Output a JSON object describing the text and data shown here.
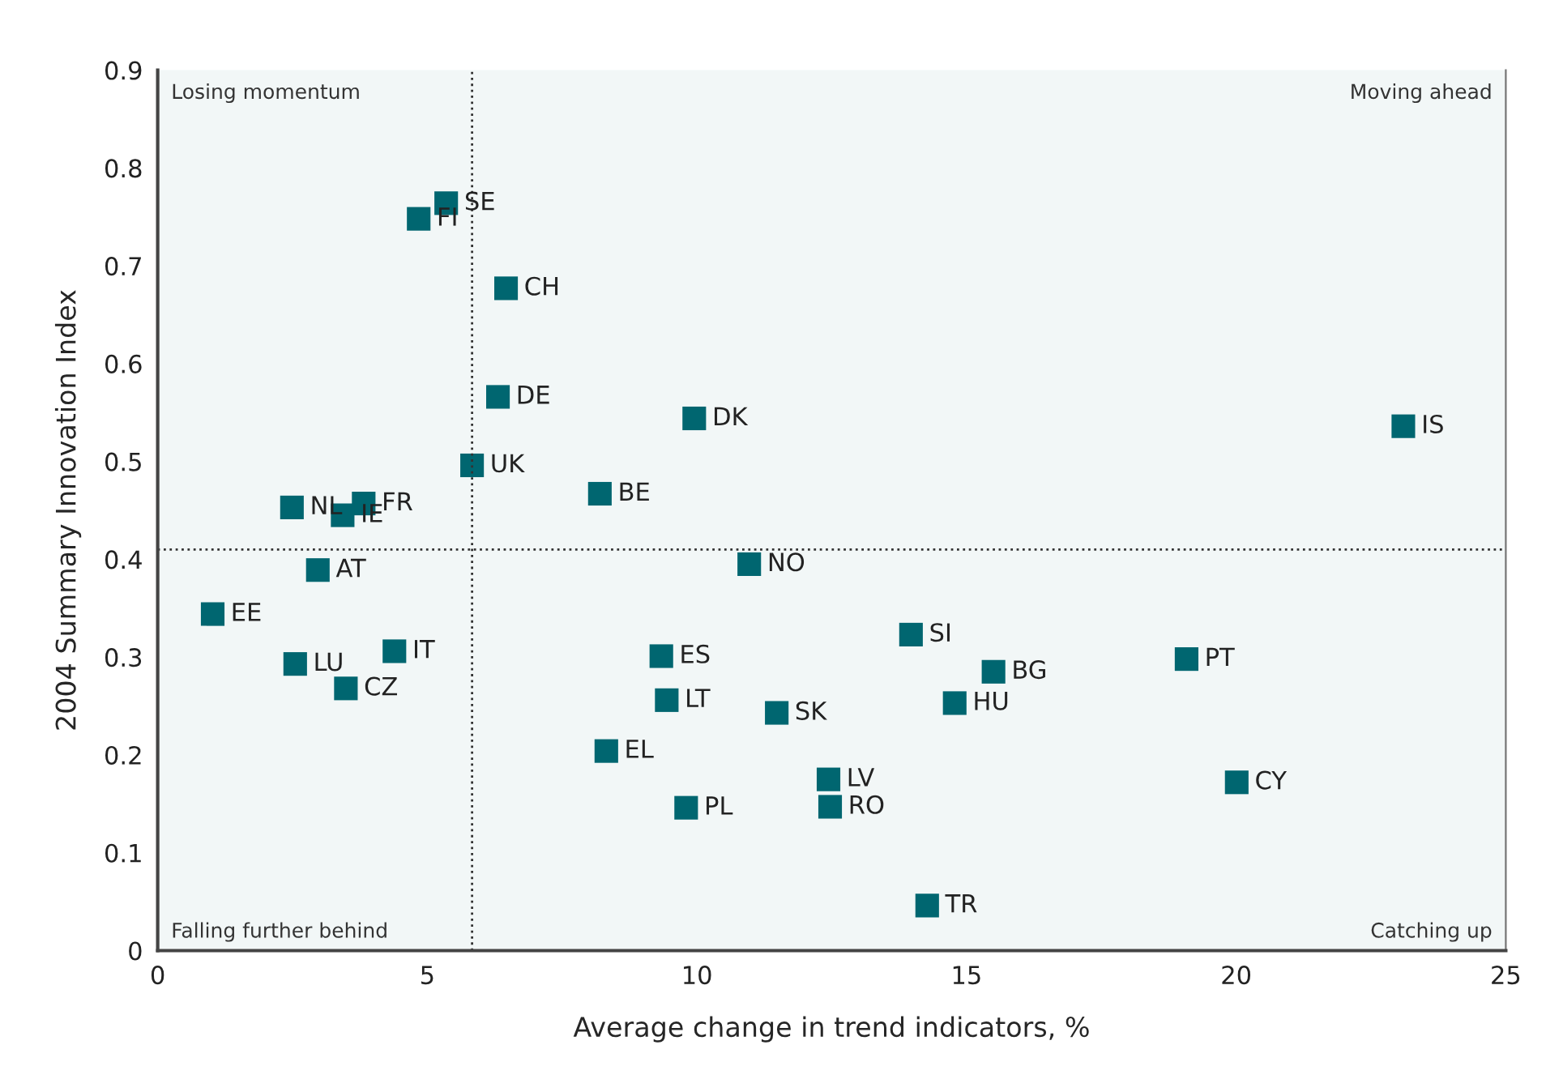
{
  "chart_data": {
    "type": "scatter",
    "xlabel": "Average change in trend indicators, %",
    "ylabel": "2004 Summary Innovation Index",
    "xlim": [
      0,
      25
    ],
    "ylim": [
      0,
      0.9
    ],
    "xticks": [
      0,
      5,
      10,
      15,
      20,
      25
    ],
    "yticks": [
      0,
      0.1,
      0.2,
      0.3,
      0.4,
      0.5,
      0.6,
      0.7,
      0.8,
      0.9
    ],
    "grid": false,
    "marker": "square",
    "legend": false,
    "ref_lines": [
      {
        "axis": "x",
        "value": 5.83,
        "line_style": "dotted",
        "color": "#333333"
      },
      {
        "axis": "y",
        "value": 0.41,
        "line_style": "dotted",
        "color": "#333333"
      }
    ],
    "annotations": [
      "Losing momentum",
      "Moving ahead",
      "Falling further behind",
      "Catching up"
    ],
    "series": [
      {
        "name": "SE",
        "color": "#006670",
        "x": [
          5.35
        ],
        "values": [
          0.764
        ]
      },
      {
        "name": "FI",
        "color": "#006670",
        "x": [
          4.84
        ],
        "values": [
          0.748
        ]
      },
      {
        "name": "CH",
        "color": "#006670",
        "x": [
          6.46
        ],
        "values": [
          0.677
        ]
      },
      {
        "name": "DE",
        "color": "#006670",
        "x": [
          6.31
        ],
        "values": [
          0.566
        ]
      },
      {
        "name": "DK",
        "color": "#006670",
        "x": [
          9.95
        ],
        "values": [
          0.544
        ]
      },
      {
        "name": "UK",
        "color": "#006670",
        "x": [
          5.83
        ],
        "values": [
          0.496
        ]
      },
      {
        "name": "BE",
        "color": "#006670",
        "x": [
          8.2
        ],
        "values": [
          0.467
        ]
      },
      {
        "name": "NL",
        "color": "#006670",
        "x": [
          2.49
        ],
        "values": [
          0.453
        ]
      },
      {
        "name": "FR",
        "color": "#006670",
        "x": [
          3.82
        ],
        "values": [
          0.457
        ]
      },
      {
        "name": "IE",
        "color": "#006670",
        "x": [
          3.43
        ],
        "values": [
          0.445
        ]
      },
      {
        "name": "IS",
        "color": "#006670",
        "x": [
          23.1
        ],
        "values": [
          0.536
        ]
      },
      {
        "name": "NO",
        "color": "#006670",
        "x": [
          10.97
        ],
        "values": [
          0.395
        ]
      },
      {
        "name": "AT",
        "color": "#006670",
        "x": [
          2.97
        ],
        "values": [
          0.389
        ]
      },
      {
        "name": "EE",
        "color": "#006670",
        "x": [
          1.02
        ],
        "values": [
          0.344
        ]
      },
      {
        "name": "LU",
        "color": "#006670",
        "x": [
          2.55
        ],
        "values": [
          0.293
        ]
      },
      {
        "name": "IT",
        "color": "#006670",
        "x": [
          4.39
        ],
        "values": [
          0.306
        ]
      },
      {
        "name": "CZ",
        "color": "#006670",
        "x": [
          3.49
        ],
        "values": [
          0.268
        ]
      },
      {
        "name": "ES",
        "color": "#006670",
        "x": [
          9.34
        ],
        "values": [
          0.301
        ]
      },
      {
        "name": "LT",
        "color": "#006670",
        "x": [
          9.44
        ],
        "values": [
          0.256
        ]
      },
      {
        "name": "SK",
        "color": "#006670",
        "x": [
          11.48
        ],
        "values": [
          0.243
        ]
      },
      {
        "name": "EL",
        "color": "#006670",
        "x": [
          8.32
        ],
        "values": [
          0.204
        ]
      },
      {
        "name": "PL",
        "color": "#006670",
        "x": [
          9.8
        ],
        "values": [
          0.146
        ]
      },
      {
        "name": "LV",
        "color": "#006670",
        "x": [
          12.44
        ],
        "values": [
          0.175
        ]
      },
      {
        "name": "RO",
        "color": "#006670",
        "x": [
          12.47
        ],
        "values": [
          0.147
        ]
      },
      {
        "name": "SI",
        "color": "#006670",
        "x": [
          13.97
        ],
        "values": [
          0.323
        ]
      },
      {
        "name": "BG",
        "color": "#006670",
        "x": [
          15.5
        ],
        "values": [
          0.285
        ]
      },
      {
        "name": "HU",
        "color": "#006670",
        "x": [
          14.78
        ],
        "values": [
          0.253
        ]
      },
      {
        "name": "PT",
        "color": "#006670",
        "x": [
          19.08
        ],
        "values": [
          0.298
        ]
      },
      {
        "name": "CY",
        "color": "#006670",
        "x": [
          20.01
        ],
        "values": [
          0.172
        ]
      },
      {
        "name": "TR",
        "color": "#006670",
        "x": [
          14.27
        ],
        "values": [
          0.046
        ]
      }
    ]
  }
}
